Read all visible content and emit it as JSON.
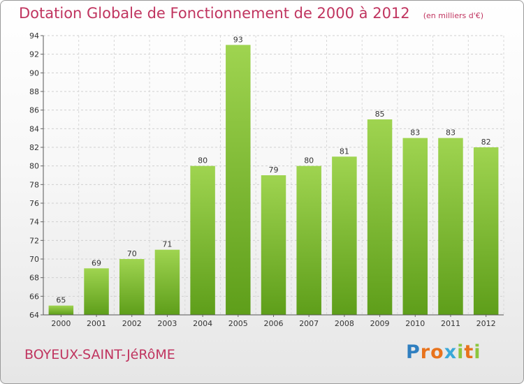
{
  "chart_data": {
    "type": "bar",
    "title": "Dotation Globale de Fonctionnement de 2000 à 2012",
    "subtitle": "(en milliers d'€)",
    "categories": [
      "2000",
      "2001",
      "2002",
      "2003",
      "2004",
      "2005",
      "2006",
      "2007",
      "2008",
      "2009",
      "2010",
      "2011",
      "2012"
    ],
    "values": [
      65,
      69,
      70,
      71,
      80,
      93,
      79,
      80,
      81,
      85,
      83,
      83,
      82
    ],
    "ylim": [
      64,
      94
    ],
    "yticks": [
      64,
      66,
      68,
      70,
      72,
      74,
      76,
      78,
      80,
      82,
      84,
      86,
      88,
      90,
      92,
      94
    ],
    "grid": true,
    "bar_color": "#7cb82f"
  },
  "footer": {
    "commune": "BOYEUX-SAINT-JéRôME",
    "logo_letters": [
      "P",
      "r",
      "o",
      "x",
      "i",
      "t",
      "i"
    ],
    "logo_colors": [
      "#2f7fc0",
      "#e8731c",
      "#e8731c",
      "#3aa8d8",
      "#8cc63e",
      "#e8731c",
      "#8cc63e"
    ]
  }
}
